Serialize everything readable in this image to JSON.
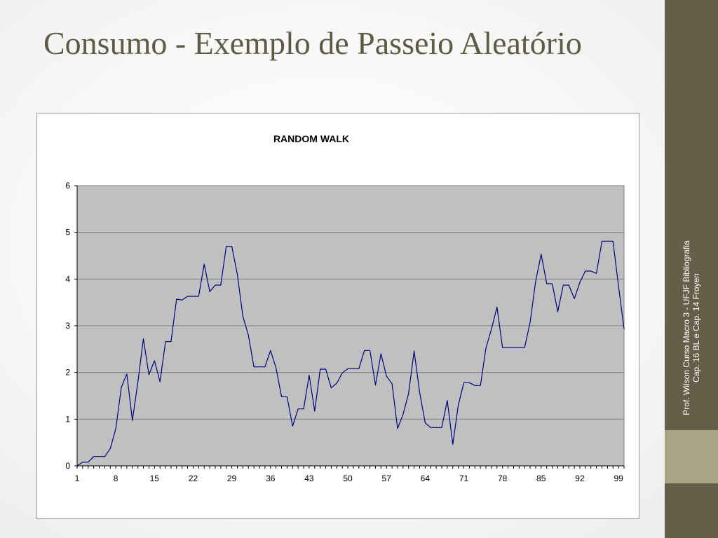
{
  "slide": {
    "title": "Consumo - Exemplo de Passeio Aleatório",
    "side_note": "Prof. Wilson Curso Macro 3 - UFJF Bibliografia Cap. 16 BL e Cap. 14 Froyen"
  },
  "chart_data": {
    "type": "line",
    "title": "RANDOM WALK",
    "xlabel": "",
    "ylabel": "",
    "ylim": [
      0,
      6
    ],
    "yticks": [
      0,
      1,
      2,
      3,
      4,
      5,
      6
    ],
    "xticks": [
      "1",
      "8",
      "15",
      "22",
      "29",
      "36",
      "43",
      "50",
      "57",
      "64",
      "71",
      "78",
      "85",
      "92",
      "99"
    ],
    "grid": true,
    "legend": "none",
    "colors": {
      "plot_background": "#c0c0c0",
      "line": "#000080",
      "grid": "#808080"
    },
    "x": [
      1,
      2,
      3,
      4,
      5,
      6,
      7,
      8,
      9,
      10,
      11,
      12,
      13,
      14,
      15,
      16,
      17,
      18,
      19,
      20,
      21,
      22,
      23,
      24,
      25,
      26,
      27,
      28,
      29,
      30,
      31,
      32,
      33,
      34,
      35,
      36,
      37,
      38,
      39,
      40,
      41,
      42,
      43,
      44,
      45,
      46,
      47,
      48,
      49,
      50,
      51,
      52,
      53,
      54,
      55,
      56,
      57,
      58,
      59,
      60,
      61,
      62,
      63,
      64,
      65,
      66,
      67,
      68,
      69,
      70,
      71,
      72,
      73,
      74,
      75,
      76,
      77,
      78,
      79,
      80,
      81,
      82,
      83,
      84,
      85,
      86,
      87,
      88,
      89,
      90,
      91,
      92,
      93,
      94,
      95,
      96,
      97,
      98,
      99,
      100
    ],
    "series": [
      {
        "values": [
          0.0,
          0.08,
          0.08,
          0.2,
          0.2,
          0.2,
          0.37,
          0.8,
          1.68,
          1.97,
          0.97,
          1.8,
          2.72,
          1.95,
          2.25,
          1.8,
          2.66,
          2.66,
          3.57,
          3.55,
          3.63,
          3.63,
          3.63,
          4.32,
          3.73,
          3.87,
          3.87,
          4.7,
          4.7,
          4.1,
          3.2,
          2.8,
          2.12,
          2.12,
          2.12,
          2.47,
          2.1,
          1.48,
          1.48,
          0.85,
          1.22,
          1.22,
          1.94,
          1.17,
          2.07,
          2.07,
          1.67,
          1.77,
          1.99,
          2.08,
          2.08,
          2.08,
          2.47,
          2.47,
          1.73,
          2.4,
          1.92,
          1.76,
          0.8,
          1.1,
          1.55,
          2.46,
          1.57,
          0.92,
          0.82,
          0.82,
          0.82,
          1.4,
          0.46,
          1.3,
          1.78,
          1.78,
          1.72,
          1.72,
          2.52,
          2.93,
          3.4,
          2.53,
          2.53,
          2.53,
          2.53,
          2.53,
          3.08,
          3.95,
          4.53,
          3.9,
          3.9,
          3.3,
          3.87,
          3.87,
          3.58,
          3.93,
          4.17,
          4.17,
          4.12,
          4.81,
          4.81,
          4.81,
          3.85,
          2.93
        ]
      }
    ]
  }
}
